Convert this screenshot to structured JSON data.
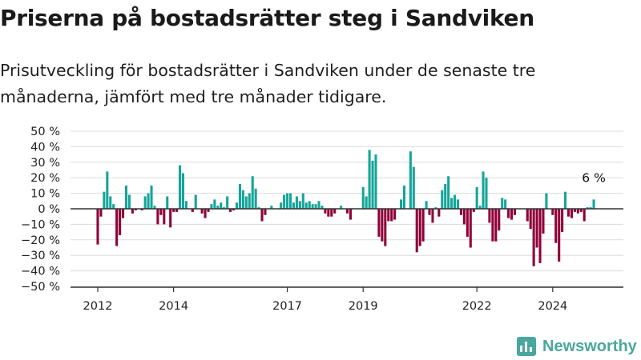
{
  "title": "Priserna på bostadsrätter steg i Sandviken",
  "subtitle": "Prisutveckling för bostadsrätter i Sandviken under de senaste tre månaderna, jämfört med tre månader tidigare.",
  "brand": {
    "name": "Newsworthy",
    "icon": "newsworthy-logo-icon",
    "color": "#4aa79d"
  },
  "chart_data": {
    "type": "bar",
    "title": "",
    "xlabel": "",
    "ylabel": "",
    "ylim": [
      -50,
      50
    ],
    "yticks": [
      50,
      40,
      30,
      20,
      10,
      0,
      -10,
      -20,
      -30,
      -40,
      -50
    ],
    "ytick_labels": [
      "50 %",
      "40 %",
      "30 %",
      "20 %",
      "10 %",
      "0 %",
      "−10 %",
      "−20 %",
      "−30 %",
      "−40 %",
      "−50 %"
    ],
    "x_start": "2012-01",
    "x_end": "2025-03",
    "xticks": [
      {
        "date": "2012-01",
        "label": "2012"
      },
      {
        "date": "2014-01",
        "label": "2014"
      },
      {
        "date": "2017-01",
        "label": "2017"
      },
      {
        "date": "2019-01",
        "label": "2019"
      },
      {
        "date": "2022-01",
        "label": "2022"
      },
      {
        "date": "2024-01",
        "label": "2024"
      }
    ],
    "grid": true,
    "positive_color": "#15a59a",
    "negative_color": "#8f0039",
    "end_label": "6 %",
    "values": [
      -23,
      -5,
      11,
      24,
      8,
      3,
      -24,
      -17,
      -6,
      15,
      9,
      -3,
      -1,
      0,
      -1,
      8,
      10,
      15,
      2,
      -10,
      -4,
      -10,
      8,
      -12,
      -2,
      -2,
      28,
      23,
      5,
      0,
      -2,
      9,
      0,
      -3,
      -6,
      -2,
      3,
      6,
      2,
      4,
      1,
      8,
      -2,
      -1,
      4,
      16,
      12,
      8,
      10,
      21,
      13,
      1,
      -8,
      -4,
      0,
      2,
      0,
      0,
      4,
      9,
      10,
      10,
      4,
      8,
      5,
      10,
      4,
      5,
      3,
      3,
      5,
      2,
      -3,
      -5,
      -5,
      -3,
      0,
      2,
      0,
      -3,
      -7,
      0,
      0,
      0,
      14,
      8,
      38,
      31,
      35,
      -18,
      -21,
      -24,
      -8,
      -8,
      -7,
      0,
      6,
      15,
      0,
      37,
      27,
      -28,
      -24,
      -21,
      5,
      -4,
      -9,
      1,
      -5,
      12,
      16,
      21,
      7,
      9,
      6,
      -4,
      -10,
      -18,
      -25,
      -2,
      14,
      2,
      24,
      20,
      -9,
      -21,
      -21,
      -14,
      7,
      6,
      -6,
      -7,
      -4,
      0,
      0,
      0,
      -8,
      -13,
      -37,
      -25,
      -35,
      -16,
      10,
      0,
      -4,
      -22,
      -34,
      -15,
      11,
      -5,
      -6,
      -2,
      -3,
      -2,
      -8,
      1,
      1,
      6
    ]
  }
}
